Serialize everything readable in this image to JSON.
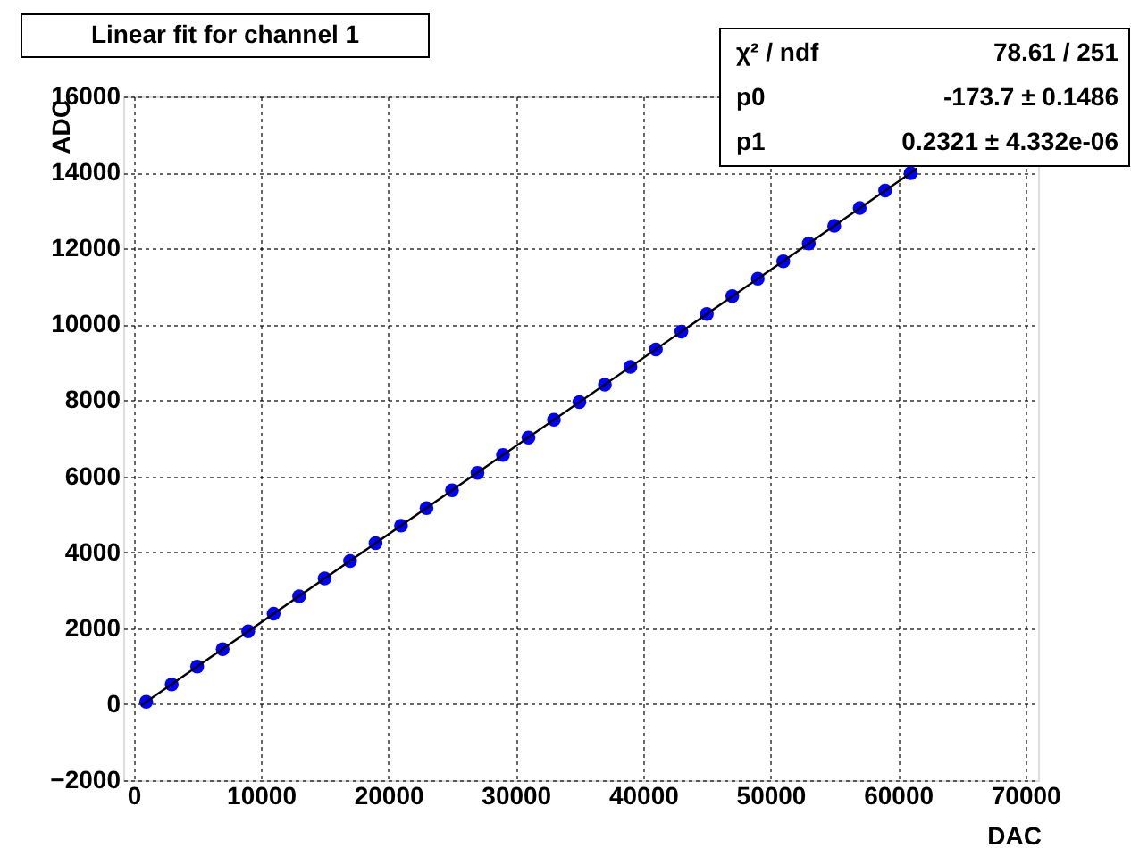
{
  "chart_data": {
    "type": "scatter",
    "title": "Linear fit for channel 1",
    "xlabel": "DAC",
    "ylabel": "ADC",
    "xlim": [
      -800,
      71000
    ],
    "ylim": [
      -2000,
      16000
    ],
    "xticks": [
      0,
      10000,
      20000,
      30000,
      40000,
      50000,
      60000,
      70000
    ],
    "yticks": [
      -2000,
      0,
      2000,
      4000,
      6000,
      8000,
      10000,
      12000,
      14000,
      16000
    ],
    "grid": true,
    "series": [
      {
        "marker": "circle",
        "color": "#0000ff",
        "x": [
          1000,
          3000,
          5000,
          7000,
          9000,
          11000,
          13000,
          15000,
          17000,
          19000,
          21000,
          23000,
          25000,
          27000,
          29000,
          31000,
          33000,
          35000,
          37000,
          39000,
          41000,
          43000,
          45000,
          47000,
          49000,
          51000,
          53000,
          55000,
          57000,
          59000,
          61000
        ],
        "values": [
          60,
          520,
          990,
          1450,
          1920,
          2380,
          2840,
          3310,
          3770,
          4240,
          4700,
          5160,
          5630,
          6090,
          6560,
          7020,
          7490,
          7950,
          8410,
          8880,
          9340,
          9810,
          10270,
          10740,
          11200,
          11660,
          12130,
          12590,
          13060,
          13520,
          13980
        ]
      },
      {
        "type": "line",
        "color": "#000000",
        "x": [
          600,
          61500
        ],
        "values": [
          -30,
          14100
        ]
      }
    ],
    "annotations": [
      "χ² / ndf",
      "78.61 / 251",
      "p0",
      "-173.7 ± 0.1486",
      "p1",
      "0.2321 ± 4.332e-06"
    ]
  }
}
